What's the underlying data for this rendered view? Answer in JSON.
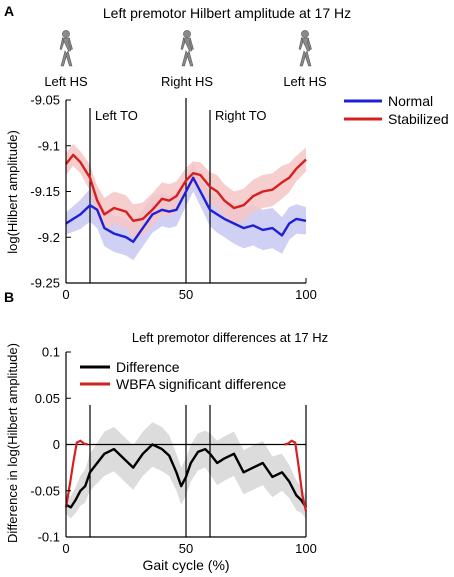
{
  "panelA": {
    "letter": "A",
    "title": "Left premotor Hilbert amplitude at 17 Hz",
    "ylabel": "log(Hilbert amplitude)",
    "gait_labels": [
      "Left HS",
      "Right HS",
      "Left HS"
    ],
    "event_labels": [
      "Left TO",
      "Right TO"
    ]
  },
  "panelB": {
    "letter": "B",
    "title": "Left premotor differences at 17 Hz",
    "ylabel": "Difference in log(Hilbert amplitude)",
    "xlabel": "Gait cycle (%)"
  },
  "colors": {
    "normal": "#1f1fd6",
    "stabilized": "#d62020",
    "normal_band": "#c8c8f2",
    "stabilized_band": "#f5c6c6",
    "difference": "#000000",
    "difference_band": "#d6d6d6",
    "significant": "#d62020"
  },
  "chart_data": [
    {
      "type": "line",
      "title": "Left premotor Hilbert amplitude at 17 Hz",
      "xlabel": "",
      "ylabel": "log(Hilbert amplitude)",
      "xlim": [
        0,
        100
      ],
      "ylim": [
        -9.25,
        -9.05
      ],
      "xticks": [
        0,
        50,
        100
      ],
      "yticks": [
        -9.05,
        -9.1,
        -9.15,
        -9.2,
        -9.25
      ],
      "ytick_labels": [
        "-9.05",
        "-9.1",
        "-9.15",
        "-9.2",
        "-9.25"
      ],
      "xtick_labels": [
        "0",
        "50",
        "100"
      ],
      "legend_position": "top-right",
      "event_lines": [
        {
          "x": 10,
          "label": "Left TO"
        },
        {
          "x": 50,
          "label": ""
        },
        {
          "x": 60,
          "label": "Right TO"
        }
      ],
      "x": [
        0,
        3,
        6,
        10,
        13,
        16,
        20,
        25,
        28,
        32,
        36,
        40,
        43,
        46,
        50,
        53,
        56,
        60,
        63,
        66,
        70,
        74,
        78,
        82,
        86,
        90,
        93,
        96,
        100
      ],
      "series": [
        {
          "name": "Normal",
          "values": [
            -9.185,
            -9.18,
            -9.175,
            -9.165,
            -9.17,
            -9.19,
            -9.196,
            -9.2,
            -9.205,
            -9.19,
            -9.175,
            -9.17,
            -9.172,
            -9.17,
            -9.15,
            -9.135,
            -9.15,
            -9.17,
            -9.175,
            -9.18,
            -9.185,
            -9.19,
            -9.187,
            -9.192,
            -9.19,
            -9.198,
            -9.185,
            -9.18,
            -9.182
          ],
          "band": [
            0.012,
            0.014,
            0.016,
            0.018,
            0.02,
            0.02,
            0.02,
            0.02,
            0.02,
            0.02,
            0.02,
            0.018,
            0.018,
            0.018,
            0.016,
            0.015,
            0.016,
            0.018,
            0.02,
            0.02,
            0.022,
            0.022,
            0.022,
            0.022,
            0.022,
            0.02,
            0.018,
            0.016,
            0.015
          ]
        },
        {
          "name": "Stabilized",
          "values": [
            -9.12,
            -9.11,
            -9.118,
            -9.135,
            -9.16,
            -9.175,
            -9.168,
            -9.172,
            -9.182,
            -9.18,
            -9.17,
            -9.158,
            -9.16,
            -9.155,
            -9.138,
            -9.13,
            -9.132,
            -9.145,
            -9.15,
            -9.16,
            -9.168,
            -9.165,
            -9.155,
            -9.15,
            -9.148,
            -9.14,
            -9.135,
            -9.125,
            -9.115
          ],
          "band": [
            0.012,
            0.012,
            0.012,
            0.014,
            0.016,
            0.018,
            0.018,
            0.018,
            0.018,
            0.018,
            0.018,
            0.018,
            0.018,
            0.016,
            0.014,
            0.013,
            0.014,
            0.016,
            0.018,
            0.018,
            0.018,
            0.018,
            0.018,
            0.018,
            0.018,
            0.018,
            0.016,
            0.014,
            0.013
          ]
        }
      ]
    },
    {
      "type": "line",
      "title": "Left premotor differences at 17 Hz",
      "xlabel": "Gait cycle (%)",
      "ylabel": "Difference in log(Hilbert amplitude)",
      "xlim": [
        0,
        100
      ],
      "ylim": [
        -0.1,
        0.1
      ],
      "xticks": [
        0,
        50,
        100
      ],
      "yticks": [
        0.1,
        0.05,
        0,
        -0.05,
        -0.1
      ],
      "ytick_labels": [
        "0.1",
        "0.05",
        "0",
        "-0.05",
        "-0.1"
      ],
      "xtick_labels": [
        "0",
        "50",
        "100"
      ],
      "legend_position": "top-right",
      "event_lines": [
        {
          "x": 10
        },
        {
          "x": 50
        },
        {
          "x": 60
        },
        {
          "x": 100
        }
      ],
      "x": [
        0,
        2,
        4,
        6,
        8,
        10,
        13,
        16,
        20,
        24,
        28,
        32,
        36,
        40,
        43,
        46,
        48,
        50,
        52,
        55,
        58,
        60,
        63,
        66,
        70,
        74,
        78,
        82,
        86,
        90,
        93,
        96,
        98,
        100
      ],
      "series": [
        {
          "name": "Difference",
          "values": [
            -0.065,
            -0.068,
            -0.06,
            -0.05,
            -0.045,
            -0.03,
            -0.02,
            -0.01,
            -0.005,
            -0.015,
            -0.025,
            -0.01,
            0.0,
            -0.005,
            -0.012,
            -0.03,
            -0.045,
            -0.035,
            -0.02,
            -0.008,
            -0.005,
            -0.01,
            -0.02,
            -0.015,
            -0.01,
            -0.03,
            -0.025,
            -0.02,
            -0.035,
            -0.03,
            -0.04,
            -0.055,
            -0.06,
            -0.068
          ],
          "band": [
            0.01,
            0.012,
            0.014,
            0.016,
            0.018,
            0.02,
            0.022,
            0.024,
            0.024,
            0.024,
            0.024,
            0.024,
            0.024,
            0.024,
            0.022,
            0.02,
            0.02,
            0.02,
            0.02,
            0.02,
            0.02,
            0.022,
            0.024,
            0.024,
            0.024,
            0.024,
            0.024,
            0.024,
            0.022,
            0.02,
            0.018,
            0.016,
            0.014,
            0.012
          ]
        },
        {
          "name": "WBFA significant difference",
          "segments": [
            {
              "x": [
                0,
                1.5,
                3,
                4.5,
                6,
                7.5,
                9
              ],
              "values": [
                -0.068,
                -0.045,
                -0.02,
                0.002,
                0.004,
                0.001,
                0.0
              ]
            },
            {
              "x": [
                91,
                92.5,
                94,
                95.5,
                97,
                98.5,
                100
              ],
              "values": [
                0.0,
                0.001,
                0.004,
                0.002,
                -0.025,
                -0.055,
                -0.072
              ]
            }
          ]
        }
      ]
    }
  ]
}
